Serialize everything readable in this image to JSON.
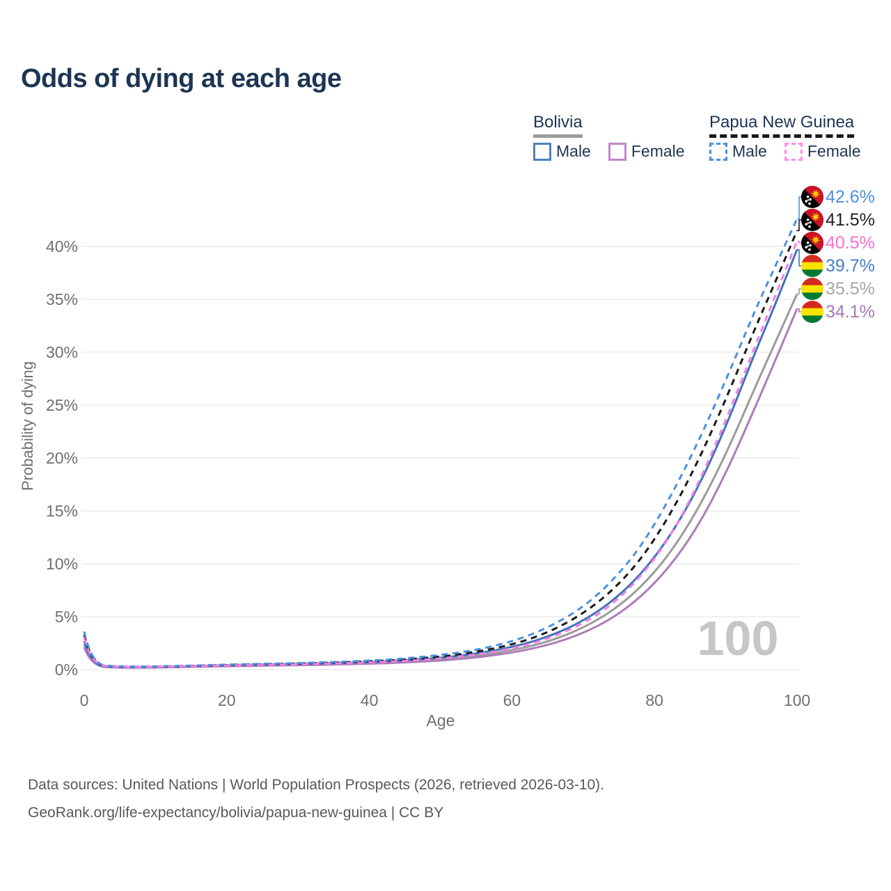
{
  "page": {
    "title": "Odds of dying at each age",
    "sources_line1": "Data sources: United Nations | World Population Prospects (2026, retrieved 2026-03-10).",
    "sources_line2": "GeoRank.org/life-expectancy/bolivia/papua-new-guinea | CC BY"
  },
  "legend": {
    "groups": [
      {
        "label": "Bolivia",
        "line_style": "solid",
        "line_color": "#9b9b9b",
        "items": [
          {
            "label": "Male",
            "swatch_color": "#4f80c2",
            "swatch_style": "solid"
          },
          {
            "label": "Female",
            "swatch_color": "#c287c9",
            "swatch_style": "solid"
          }
        ]
      },
      {
        "label": "Papua New Guinea",
        "line_style": "dashed",
        "line_color": "#1a1a1a",
        "items": [
          {
            "label": "Male",
            "swatch_color": "#4a90e2",
            "swatch_style": "dashed"
          },
          {
            "label": "Female",
            "swatch_color": "#ff8cec",
            "swatch_style": "dashed"
          }
        ]
      }
    ]
  },
  "chart_data": {
    "type": "line",
    "title": "Odds of dying at each age",
    "xlabel": "Age",
    "ylabel": "Probability of dying",
    "x_ticks": [
      0,
      20,
      40,
      60,
      80,
      100
    ],
    "y_ticks_pct": [
      0,
      5,
      10,
      15,
      20,
      25,
      30,
      35,
      40
    ],
    "xlim": [
      0,
      100
    ],
    "ylim_pct": [
      0,
      45
    ],
    "grid": true,
    "legend_position": "top-right",
    "age_indicator_label": "100",
    "x": [
      0,
      1,
      5,
      10,
      15,
      20,
      25,
      30,
      35,
      40,
      45,
      50,
      54,
      58,
      62,
      66,
      70,
      74,
      78,
      82,
      86,
      90,
      94,
      97,
      100
    ],
    "series": [
      {
        "id": "bolivia",
        "name": "Bolivia",
        "country": "Bolivia",
        "sex": "Both",
        "style": "solid",
        "color": "#9b9b9b",
        "values_pct": [
          2.4,
          0.35,
          0.2,
          0.22,
          0.29,
          0.37,
          0.42,
          0.47,
          0.54,
          0.63,
          0.76,
          0.97,
          1.23,
          1.6,
          2.1,
          2.85,
          3.95,
          5.5,
          7.7,
          10.8,
          15.0,
          20.3,
          26.5,
          31.0,
          35.5
        ],
        "end_label": {
          "text": "35.5%",
          "value_pct": 35.5,
          "color": "#a6a6a6",
          "flag": "bolivia",
          "row": 4
        }
      },
      {
        "id": "bolivia-female",
        "name": "Bolivia Female",
        "country": "Bolivia",
        "sex": "Female",
        "style": "solid",
        "color": "#ad7cba",
        "values_pct": [
          2.1,
          0.32,
          0.18,
          0.2,
          0.26,
          0.33,
          0.37,
          0.42,
          0.48,
          0.56,
          0.67,
          0.85,
          1.08,
          1.4,
          1.85,
          2.5,
          3.45,
          4.8,
          6.8,
          9.6,
          13.4,
          18.5,
          24.6,
          29.3,
          34.1
        ],
        "end_label": {
          "text": "34.1%",
          "value_pct": 34.1,
          "color": "#a878ba",
          "flag": "bolivia",
          "row": 5
        }
      },
      {
        "id": "bolivia-male",
        "name": "Bolivia Male",
        "country": "Bolivia",
        "sex": "Male",
        "style": "solid",
        "color": "#3f74b8",
        "values_pct": [
          2.7,
          0.38,
          0.22,
          0.25,
          0.33,
          0.42,
          0.48,
          0.54,
          0.62,
          0.72,
          0.88,
          1.12,
          1.42,
          1.85,
          2.45,
          3.35,
          4.6,
          6.4,
          8.9,
          12.4,
          17.0,
          22.9,
          29.8,
          34.6,
          39.7
        ],
        "end_label": {
          "text": "39.7%",
          "value_pct": 39.7,
          "color": "#4580c6",
          "flag": "bolivia",
          "row": 3
        }
      },
      {
        "id": "papua-new-guinea",
        "name": "Papua New Guinea",
        "country": "Papua New Guinea",
        "sex": "Both",
        "style": "dashed",
        "color": "#1a1a1a",
        "values_pct": [
          3.3,
          0.47,
          0.26,
          0.28,
          0.35,
          0.44,
          0.5,
          0.57,
          0.66,
          0.78,
          0.95,
          1.24,
          1.58,
          2.05,
          2.75,
          3.8,
          5.3,
          7.4,
          10.3,
          14.4,
          19.5,
          25.5,
          32.1,
          36.7,
          41.5
        ],
        "end_label": {
          "text": "41.5%",
          "value_pct": 41.5,
          "color": "#222222",
          "flag": "papua-new-guinea",
          "row": 1
        }
      },
      {
        "id": "papua-new-guinea-male",
        "name": "Papua New Guinea Male",
        "country": "Papua New Guinea",
        "sex": "Male",
        "style": "dashed",
        "color": "#4a90e2",
        "values_pct": [
          3.6,
          0.5,
          0.28,
          0.3,
          0.38,
          0.48,
          0.55,
          0.62,
          0.72,
          0.85,
          1.05,
          1.38,
          1.75,
          2.3,
          3.1,
          4.3,
          5.9,
          8.3,
          11.5,
          16.0,
          21.3,
          27.3,
          33.8,
          38.2,
          42.6
        ],
        "end_label": {
          "text": "42.6%",
          "value_pct": 42.6,
          "color": "#4a90e2",
          "flag": "papua-new-guinea",
          "row": 0
        }
      },
      {
        "id": "papua-new-guinea-female",
        "name": "Papua New Guinea Female",
        "country": "Papua New Guinea",
        "sex": "Female",
        "style": "dashed",
        "color": "#f97de2",
        "values_pct": [
          3.0,
          0.44,
          0.24,
          0.26,
          0.32,
          0.4,
          0.45,
          0.5,
          0.58,
          0.68,
          0.82,
          1.05,
          1.33,
          1.73,
          2.3,
          3.15,
          4.35,
          6.1,
          8.7,
          12.3,
          17.3,
          23.5,
          30.4,
          35.4,
          40.5
        ],
        "end_label": {
          "text": "40.5%",
          "value_pct": 40.5,
          "color": "#fb6ed3",
          "flag": "papua-new-guinea",
          "row": 2
        }
      }
    ],
    "flag_colors": {
      "bolivia": [
        "#d52b1e",
        "#f9e300",
        "#007934"
      ],
      "papua_new_guinea": {
        "red": "#ce1126",
        "black": "#000000",
        "bird": "#ffcc00",
        "stars": "#ffffff"
      }
    }
  }
}
